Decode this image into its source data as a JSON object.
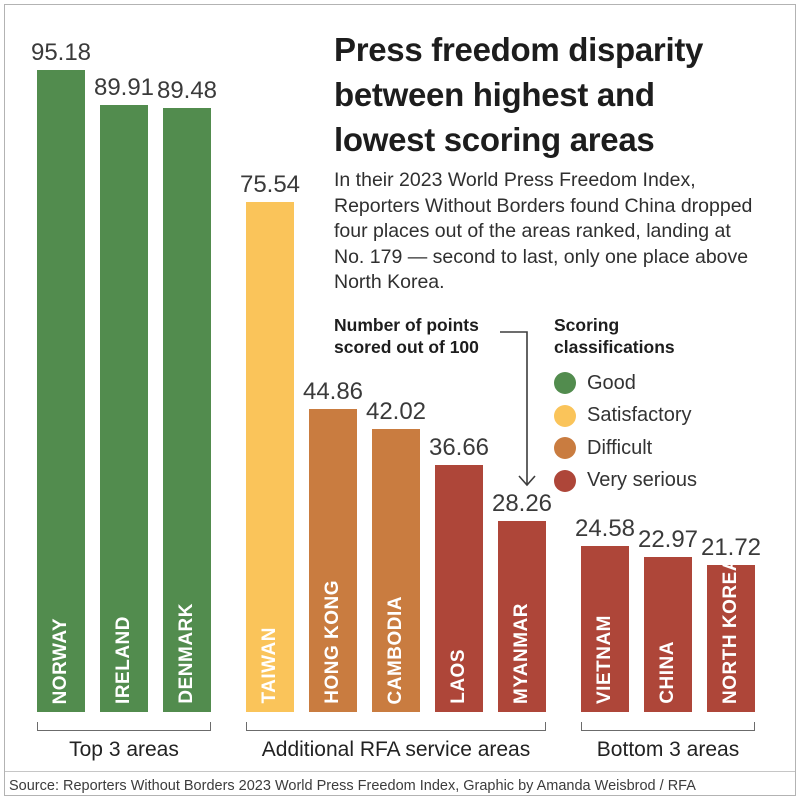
{
  "header": {
    "title_lines": [
      "Press freedom disparity",
      "between highest and",
      "lowest scoring areas"
    ],
    "intro": "In their 2023 World Press Freedom Index, Reporters Without Borders found China dropped four places out of the areas ranked, landing at No. 179 — second to last, only one place above North Korea."
  },
  "annotation": {
    "lines": [
      "Number of points",
      "scored out of 100"
    ]
  },
  "legend": {
    "heading_lines": [
      "Scoring",
      "classifications"
    ],
    "items": [
      {
        "label": "Good",
        "color": "#528C4E"
      },
      {
        "label": "Satisfactory",
        "color": "#FAC45A"
      },
      {
        "label": "Difficult",
        "color": "#C97C40"
      },
      {
        "label": "Very serious",
        "color": "#AE4639"
      }
    ]
  },
  "chart_data": {
    "type": "bar",
    "title": "Press freedom disparity between highest and lowest scoring areas",
    "ylabel": "Number of points scored out of 100",
    "ylim": [
      0,
      100
    ],
    "grid": false,
    "legend_position": "right",
    "classification_colors": {
      "Good": "#528C4E",
      "Satisfactory": "#FAC45A",
      "Difficult": "#C97C40",
      "Very serious": "#AE4639"
    },
    "groups": [
      {
        "label": "Top 3 areas",
        "bars": [
          {
            "name": "NORWAY",
            "value": 95.18,
            "classification": "Good"
          },
          {
            "name": "IRELAND",
            "value": 89.91,
            "classification": "Good"
          },
          {
            "name": "DENMARK",
            "value": 89.48,
            "classification": "Good"
          }
        ]
      },
      {
        "label": "Additional RFA service areas",
        "bars": [
          {
            "name": "TAIWAN",
            "value": 75.54,
            "classification": "Satisfactory"
          },
          {
            "name": "HONG KONG",
            "value": 44.86,
            "classification": "Difficult"
          },
          {
            "name": "CAMBODIA",
            "value": 42.02,
            "classification": "Difficult"
          },
          {
            "name": "LAOS",
            "value": 36.66,
            "classification": "Very serious"
          },
          {
            "name": "MYANMAR",
            "value": 28.26,
            "classification": "Very serious"
          }
        ]
      },
      {
        "label": "Bottom 3 areas",
        "bars": [
          {
            "name": "VIETNAM",
            "value": 24.58,
            "classification": "Very serious"
          },
          {
            "name": "CHINA",
            "value": 22.97,
            "classification": "Very serious"
          },
          {
            "name": "NORTH KOREA",
            "value": 21.72,
            "classification": "Very serious"
          }
        ]
      }
    ]
  },
  "source": {
    "text": "Source: Reporters Without Borders 2023 World Press Freedom Index, Graphic by Amanda Weisbrod / RFA"
  }
}
